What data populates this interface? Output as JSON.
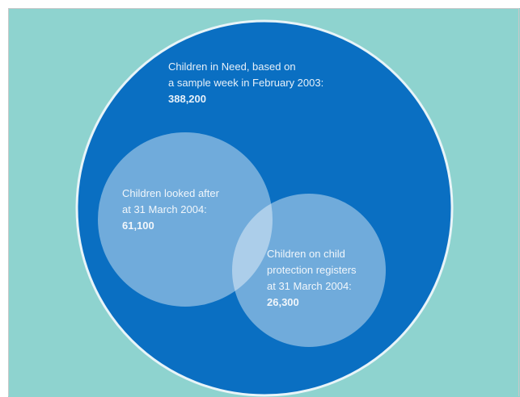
{
  "colors": {
    "background": "#8ed3cf",
    "outer_circle": "#0a6fc2",
    "outer_stroke": "#e8f4f8",
    "inner_circle": "rgba(255,255,255,0.42)"
  },
  "sets": [
    {
      "lines": [
        "Children in Need, based on",
        "a sample week in February 2003:"
      ],
      "value": "388,200"
    },
    {
      "lines": [
        "Children looked after",
        "at 31 March 2004:"
      ],
      "value": "61,100"
    },
    {
      "lines": [
        "Children on child",
        "protection registers",
        "at 31 March 2004:"
      ],
      "value": "26,300"
    }
  ]
}
